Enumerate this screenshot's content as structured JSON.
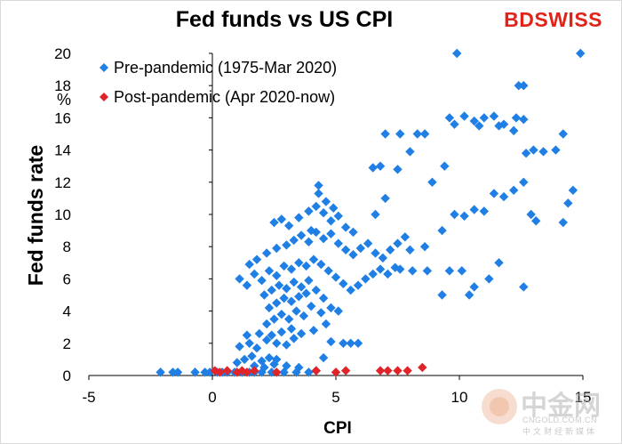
{
  "brand": {
    "bd": "BD",
    "swiss": "SWISS",
    "color": "#e2231a"
  },
  "watermark": {
    "name_cn": "中金网",
    "name_en": "CNGOLD.COM.CN",
    "subtitle_cn": "中文财经新媒体"
  },
  "chart_data": {
    "type": "scatter",
    "title": "Fed funds vs US CPI",
    "xlabel": "CPI",
    "ylabel": "Fed funds rate",
    "yunit": "%",
    "xlim": [
      -5,
      15
    ],
    "ylim": [
      0,
      20
    ],
    "xticks": [
      -5,
      0,
      5,
      10,
      15
    ],
    "yticks": [
      0,
      2,
      4,
      6,
      8,
      10,
      12,
      14,
      16,
      18,
      20
    ],
    "legend_position": "top-left",
    "series": [
      {
        "name": "Pre-pandemic (1975-Mar 2020)",
        "color": "#1f7fe5",
        "points": [
          [
            -2.1,
            0.2
          ],
          [
            -1.6,
            0.2
          ],
          [
            -1.4,
            0.2
          ],
          [
            -0.7,
            0.2
          ],
          [
            -0.3,
            0.2
          ],
          [
            -0.1,
            0.2
          ],
          [
            0.2,
            0.2
          ],
          [
            0.4,
            0.2
          ],
          [
            0.6,
            0.2
          ],
          [
            0.9,
            0.2
          ],
          [
            1.2,
            0.2
          ],
          [
            1.5,
            0.2
          ],
          [
            1.7,
            0.2
          ],
          [
            2.0,
            0.2
          ],
          [
            2.4,
            0.2
          ],
          [
            2.9,
            0.2
          ],
          [
            3.4,
            0.2
          ],
          [
            3.9,
            0.2
          ],
          [
            1.0,
            0.8
          ],
          [
            1.3,
            1.0
          ],
          [
            1.6,
            1.2
          ],
          [
            2.0,
            0.9
          ],
          [
            2.3,
            1.1
          ],
          [
            2.6,
            1.0
          ],
          [
            1.1,
            1.8
          ],
          [
            1.5,
            2.0
          ],
          [
            1.8,
            1.7
          ],
          [
            2.2,
            2.2
          ],
          [
            2.6,
            2.0
          ],
          [
            3.0,
            1.9
          ],
          [
            3.3,
            2.3
          ],
          [
            1.4,
            2.5
          ],
          [
            1.9,
            2.6
          ],
          [
            2.4,
            2.5
          ],
          [
            2.8,
            2.7
          ],
          [
            3.2,
            2.9
          ],
          [
            3.6,
            2.6
          ],
          [
            1.7,
            0.6
          ],
          [
            2.1,
            0.5
          ],
          [
            2.5,
            0.7
          ],
          [
            3.0,
            0.6
          ],
          [
            3.5,
            0.5
          ],
          [
            4.2,
            0.3
          ],
          [
            4.5,
            1.1
          ],
          [
            4.8,
            2.1
          ],
          [
            5.3,
            2.0
          ],
          [
            5.6,
            2.0
          ],
          [
            5.9,
            2.0
          ],
          [
            4.1,
            2.8
          ],
          [
            4.6,
            3.2
          ],
          [
            2.2,
            3.2
          ],
          [
            2.5,
            3.5
          ],
          [
            2.8,
            3.8
          ],
          [
            3.1,
            3.5
          ],
          [
            3.4,
            4.0
          ],
          [
            3.7,
            3.7
          ],
          [
            2.3,
            4.2
          ],
          [
            2.6,
            4.5
          ],
          [
            2.9,
            4.8
          ],
          [
            3.2,
            4.6
          ],
          [
            3.5,
            4.9
          ],
          [
            3.8,
            5.1
          ],
          [
            2.1,
            5.0
          ],
          [
            2.4,
            5.3
          ],
          [
            2.7,
            5.6
          ],
          [
            3.0,
            5.4
          ],
          [
            3.3,
            5.8
          ],
          [
            3.6,
            5.5
          ],
          [
            3.9,
            5.9
          ],
          [
            4.2,
            5.3
          ],
          [
            4.5,
            4.8
          ],
          [
            4.8,
            4.2
          ],
          [
            5.1,
            4.0
          ],
          [
            4.0,
            4.3
          ],
          [
            4.4,
            3.9
          ],
          [
            1.1,
            6.0
          ],
          [
            1.4,
            5.6
          ],
          [
            1.7,
            6.3
          ],
          [
            2.0,
            5.9
          ],
          [
            2.3,
            6.5
          ],
          [
            2.6,
            6.2
          ],
          [
            2.9,
            6.8
          ],
          [
            3.2,
            6.6
          ],
          [
            3.5,
            7.0
          ],
          [
            3.8,
            6.8
          ],
          [
            4.1,
            7.2
          ],
          [
            4.4,
            6.9
          ],
          [
            4.7,
            6.5
          ],
          [
            5.0,
            6.1
          ],
          [
            5.3,
            5.7
          ],
          [
            5.6,
            5.3
          ],
          [
            5.9,
            5.6
          ],
          [
            6.2,
            6.0
          ],
          [
            6.5,
            6.3
          ],
          [
            6.8,
            6.6
          ],
          [
            7.1,
            6.3
          ],
          [
            7.4,
            6.7
          ],
          [
            1.5,
            6.9
          ],
          [
            1.8,
            7.2
          ],
          [
            2.2,
            7.6
          ],
          [
            2.6,
            7.9
          ],
          [
            3.0,
            8.1
          ],
          [
            3.3,
            8.4
          ],
          [
            3.6,
            8.7
          ],
          [
            3.9,
            8.3
          ],
          [
            4.2,
            8.9
          ],
          [
            4.5,
            8.5
          ],
          [
            4.8,
            8.8
          ],
          [
            5.1,
            8.2
          ],
          [
            5.4,
            7.8
          ],
          [
            5.7,
            7.5
          ],
          [
            6.0,
            7.9
          ],
          [
            6.3,
            8.2
          ],
          [
            6.6,
            7.6
          ],
          [
            6.9,
            7.3
          ],
          [
            7.2,
            7.8
          ],
          [
            7.5,
            8.2
          ],
          [
            7.8,
            8.6
          ],
          [
            2.5,
            9.5
          ],
          [
            2.8,
            9.7
          ],
          [
            3.1,
            9.3
          ],
          [
            3.5,
            9.8
          ],
          [
            3.9,
            10.2
          ],
          [
            4.2,
            10.5
          ],
          [
            4.5,
            10.1
          ],
          [
            4.8,
            9.6
          ],
          [
            5.1,
            9.9
          ],
          [
            5.4,
            9.2
          ],
          [
            5.7,
            8.9
          ],
          [
            4.0,
            9.0
          ],
          [
            4.3,
            11.3
          ],
          [
            4.6,
            10.8
          ],
          [
            4.9,
            10.4
          ],
          [
            4.3,
            11.8
          ],
          [
            6.6,
            10.0
          ],
          [
            7.0,
            11.0
          ],
          [
            7.5,
            12.8
          ],
          [
            8.0,
            13.9
          ],
          [
            8.3,
            15.0
          ],
          [
            8.9,
            12.0
          ],
          [
            9.4,
            13.0
          ],
          [
            9.8,
            15.6
          ],
          [
            10.2,
            16.1
          ],
          [
            10.6,
            15.8
          ],
          [
            11.0,
            16.0
          ],
          [
            11.4,
            16.1
          ],
          [
            11.8,
            15.6
          ],
          [
            12.2,
            15.2
          ],
          [
            12.7,
            13.8
          ],
          [
            13.0,
            14.0
          ],
          [
            13.4,
            13.9
          ],
          [
            13.9,
            14.0
          ],
          [
            14.2,
            15.0
          ],
          [
            7.0,
            15.0
          ],
          [
            6.8,
            13.0
          ],
          [
            6.5,
            12.9
          ],
          [
            7.6,
            15.0
          ],
          [
            8.6,
            15.0
          ],
          [
            9.6,
            16.0
          ],
          [
            10.8,
            15.5
          ],
          [
            11.6,
            15.5
          ],
          [
            12.3,
            16.0
          ],
          [
            12.6,
            15.9
          ],
          [
            9.8,
            10.0
          ],
          [
            10.2,
            9.9
          ],
          [
            10.6,
            10.3
          ],
          [
            11.0,
            10.2
          ],
          [
            11.4,
            11.3
          ],
          [
            11.8,
            11.1
          ],
          [
            12.2,
            11.5
          ],
          [
            12.6,
            12.0
          ],
          [
            12.9,
            10.0
          ],
          [
            13.1,
            9.6
          ],
          [
            9.3,
            9.0
          ],
          [
            8.6,
            8.0
          ],
          [
            8.0,
            7.8
          ],
          [
            7.6,
            6.6
          ],
          [
            8.1,
            6.5
          ],
          [
            8.7,
            6.5
          ],
          [
            9.3,
            5.0
          ],
          [
            9.6,
            6.5
          ],
          [
            10.1,
            6.5
          ],
          [
            10.4,
            5.0
          ],
          [
            10.6,
            5.5
          ],
          [
            11.2,
            6.0
          ],
          [
            11.6,
            7.0
          ],
          [
            12.6,
            5.5
          ],
          [
            9.9,
            20.0
          ],
          [
            12.4,
            18.0
          ],
          [
            12.6,
            18.0
          ],
          [
            14.9,
            20.0
          ],
          [
            14.6,
            11.5
          ],
          [
            14.4,
            10.7
          ],
          [
            14.2,
            9.5
          ]
        ]
      },
      {
        "name": "Post-pandemic (Apr 2020-now)",
        "color": "#e0242a",
        "points": [
          [
            0.1,
            0.3
          ],
          [
            0.3,
            0.2
          ],
          [
            0.6,
            0.3
          ],
          [
            1.0,
            0.2
          ],
          [
            1.2,
            0.3
          ],
          [
            1.4,
            0.2
          ],
          [
            1.7,
            0.3
          ],
          [
            2.6,
            0.2
          ],
          [
            4.2,
            0.3
          ],
          [
            5.0,
            0.2
          ],
          [
            5.4,
            0.3
          ],
          [
            6.8,
            0.3
          ],
          [
            7.1,
            0.3
          ],
          [
            7.5,
            0.3
          ],
          [
            7.9,
            0.3
          ],
          [
            8.5,
            0.5
          ]
        ]
      }
    ]
  }
}
